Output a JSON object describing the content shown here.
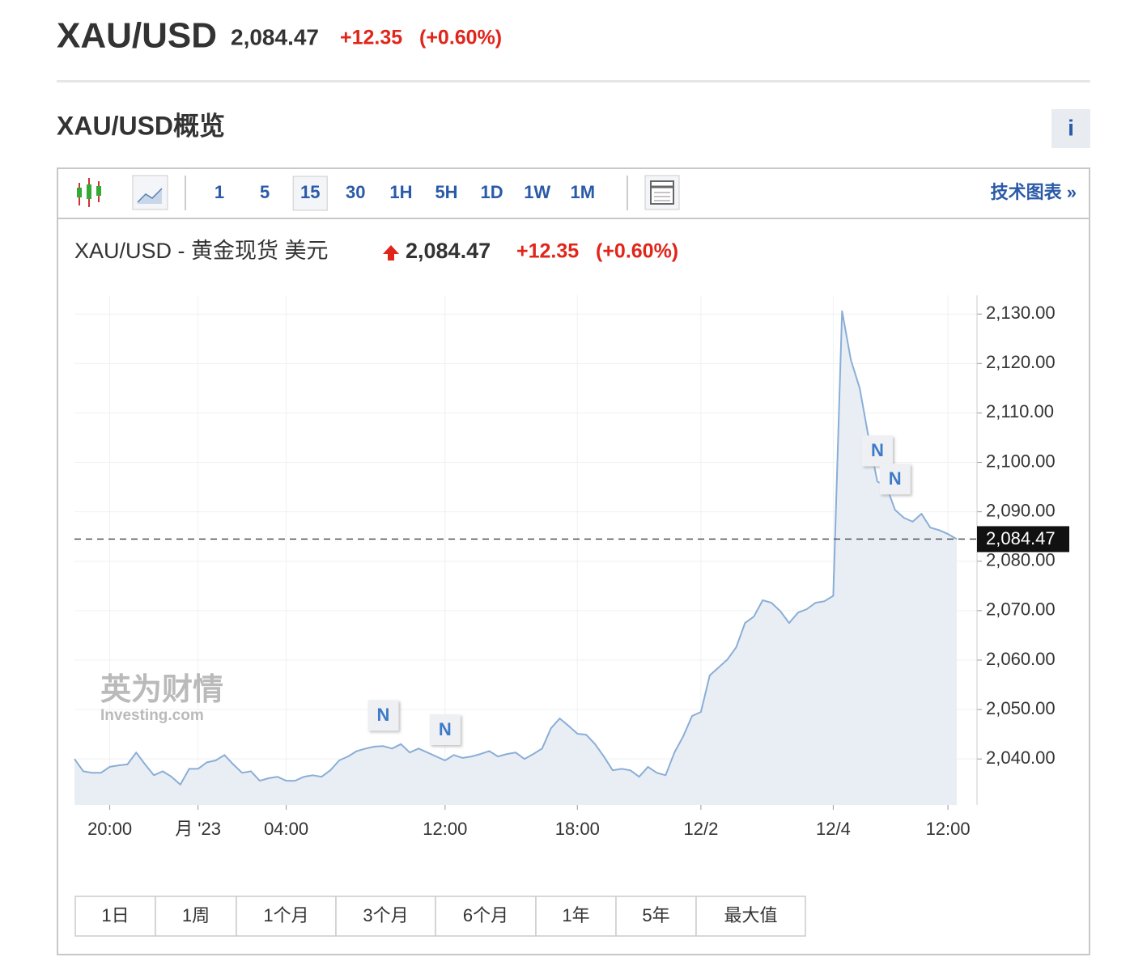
{
  "header": {
    "symbol": "XAU/USD",
    "price": "2,084.47",
    "change": "+12.35",
    "change_pct": "(+0.60%)"
  },
  "section_title": "XAU/USD概览",
  "info_button": "i",
  "toolbar": {
    "intervals": [
      "1",
      "5",
      "15",
      "30",
      "1H",
      "5H",
      "1D",
      "1W",
      "1M"
    ],
    "technical_chart": "技术图表 »"
  },
  "chart_data": {
    "type": "area",
    "title": "XAU/USD - 黄金现货 美元",
    "price": "2,084.47",
    "change": "+12.35",
    "change_pct": "(+0.60%)",
    "categories": [
      null,
      null,
      null,
      null,
      "20:00",
      null,
      null,
      null,
      null,
      null,
      null,
      null,
      null,
      null,
      "月 '23",
      null,
      null,
      null,
      null,
      null,
      null,
      null,
      null,
      null,
      "04:00",
      null,
      null,
      null,
      null,
      null,
      null,
      null,
      null,
      null,
      null,
      null,
      null,
      null,
      null,
      null,
      null,
      null,
      "12:00",
      null,
      null,
      null,
      null,
      null,
      null,
      null,
      null,
      null,
      null,
      null,
      null,
      null,
      null,
      "18:00",
      null,
      null,
      null,
      null,
      null,
      null,
      null,
      null,
      null,
      null,
      null,
      null,
      null,
      "12/2",
      null,
      null,
      null,
      null,
      null,
      null,
      null,
      null,
      null,
      null,
      null,
      null,
      null,
      null,
      "12/4",
      null,
      null,
      null,
      null,
      null,
      null,
      null,
      null,
      null,
      null,
      null,
      null,
      "12:00",
      null
    ],
    "values": [
      2040.0,
      2037.5,
      2037.2,
      2037.2,
      2038.4,
      2038.7,
      2038.9,
      2041.3,
      2038.9,
      2036.7,
      2037.5,
      2036.4,
      2034.8,
      2038.0,
      2038.0,
      2039.3,
      2039.7,
      2040.8,
      2038.9,
      2037.2,
      2037.5,
      2035.6,
      2036.1,
      2036.4,
      2035.6,
      2035.6,
      2036.4,
      2036.7,
      2036.4,
      2037.7,
      2039.7,
      2040.5,
      2041.6,
      2042.1,
      2042.5,
      2042.6,
      2042.1,
      2043.0,
      2041.3,
      2042.1,
      2041.3,
      2040.5,
      2039.7,
      2040.8,
      2040.2,
      2040.5,
      2041.0,
      2041.6,
      2040.5,
      2041.0,
      2041.3,
      2040.0,
      2041.0,
      2042.1,
      2046.2,
      2048.2,
      2046.7,
      2045.1,
      2044.9,
      2043.0,
      2040.5,
      2037.7,
      2038.0,
      2037.7,
      2036.4,
      2038.4,
      2037.2,
      2036.7,
      2041.3,
      2044.6,
      2048.7,
      2049.5,
      2056.9,
      2058.5,
      2060.1,
      2062.6,
      2067.5,
      2068.8,
      2072.1,
      2071.6,
      2069.9,
      2067.5,
      2069.6,
      2070.3,
      2071.6,
      2071.9,
      2073.0,
      2130.6,
      2120.7,
      2115.0,
      2105.1,
      2096.1,
      2095.3,
      2090.4,
      2088.8,
      2088.0,
      2089.6,
      2086.8,
      2086.3,
      2085.5,
      2084.47
    ],
    "color": "#8aaed6",
    "ylim": [
      2030.7,
      2133.8
    ],
    "yticks": [
      {
        "value": 2040,
        "label": "2,040.00"
      },
      {
        "value": 2050,
        "label": "2,050.00"
      },
      {
        "value": 2060,
        "label": "2,060.00"
      },
      {
        "value": 2070,
        "label": "2,070.00"
      },
      {
        "value": 2080,
        "label": "2,080.00"
      },
      {
        "value": 2090,
        "label": "2,090.00"
      },
      {
        "value": 2100,
        "label": "2,100.00"
      },
      {
        "value": 2110,
        "label": "2,110.00"
      },
      {
        "value": 2120,
        "label": "2,120.00"
      },
      {
        "value": 2130,
        "label": "2,130.00"
      }
    ],
    "grid": true,
    "price_line": {
      "value": 2084.47,
      "label": "2,084.47"
    },
    "markers": [
      {
        "x": 35,
        "label": "N"
      },
      {
        "x": 42,
        "label": "N"
      },
      {
        "x": 91,
        "label": "N"
      },
      {
        "x": 93,
        "label": "N"
      }
    ],
    "watermark": [
      "英为财情",
      "Investing.com"
    ]
  },
  "ranges": [
    "1日",
    "1周",
    "1个月",
    "3个月",
    "6个月",
    "1年",
    "5年",
    "最大值"
  ]
}
